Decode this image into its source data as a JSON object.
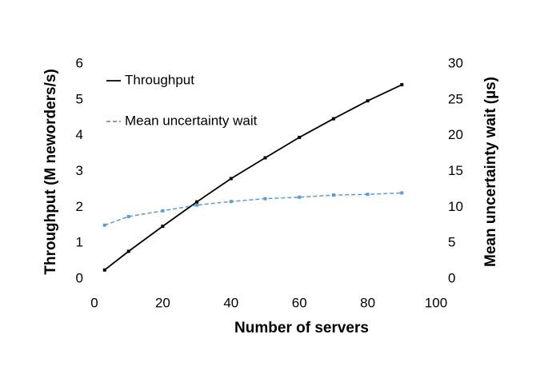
{
  "chart_data": {
    "type": "line",
    "x_label": "Number of servers",
    "y_label": "Throughput (M neworders/s)",
    "y2_label": "Mean uncertainty wait (µs)",
    "x": [
      3,
      10,
      20,
      30,
      40,
      50,
      60,
      70,
      80,
      90
    ],
    "series": [
      {
        "name": "Throughput",
        "color": "#000000",
        "dash": false,
        "values": [
          0.25,
          0.77,
          1.47,
          2.15,
          2.8,
          3.38,
          3.95,
          4.47,
          4.97,
          5.42
        ]
      },
      {
        "name": "Mean uncertainty wait",
        "color": "#5b9bd5",
        "dash": true,
        "axis": "y2",
        "values": [
          7.5,
          8.7,
          9.5,
          10.3,
          10.8,
          11.2,
          11.4,
          11.7,
          11.8,
          12.0
        ]
      }
    ],
    "xlim": [
      0,
      100
    ],
    "xticks": [
      0,
      20,
      40,
      60,
      80,
      100
    ],
    "ylim": [
      0,
      6
    ],
    "yticks": [
      0,
      1,
      2,
      3,
      4,
      5,
      6
    ],
    "y2lim": [
      0,
      30
    ],
    "y2ticks": [
      0,
      5,
      10,
      15,
      20,
      25,
      30
    ],
    "grid": false,
    "legend": "top-left"
  }
}
